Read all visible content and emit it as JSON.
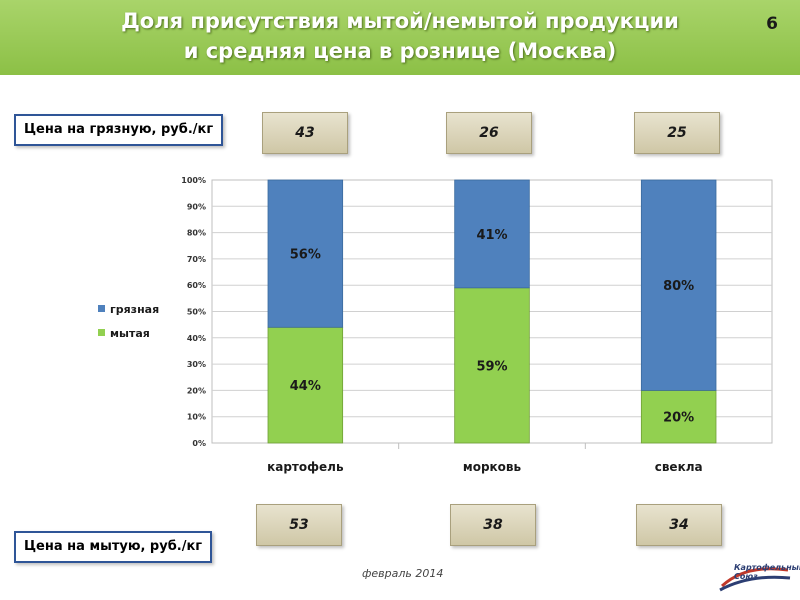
{
  "header": {
    "title_line1": "Доля присутствия мытой/немытой продукции",
    "title_line2": "и средняя цена в рознице (Москва)",
    "page_number": "6"
  },
  "price_labels": {
    "dirty": "Цена на грязную, руб./кг",
    "washed": "Цена на мытую, руб./кг"
  },
  "prices_dirty": [
    "43",
    "26",
    "25"
  ],
  "prices_washed": [
    "53",
    "38",
    "34"
  ],
  "footer": {
    "date": "февраль 2014",
    "logo_text": "Картофельный Союз"
  },
  "colors": {
    "washed": "#92d050",
    "dirty": "#4f81bd",
    "header": "#8cc046"
  },
  "chart_data": {
    "type": "bar",
    "stacked": true,
    "percent": true,
    "categories": [
      "картофель",
      "морковь",
      "свекла"
    ],
    "series": [
      {
        "name": "мытая",
        "values": [
          44,
          59,
          20
        ],
        "labels": [
          "44%",
          "59%",
          "20%"
        ]
      },
      {
        "name": "грязная",
        "values": [
          56,
          41,
          80
        ],
        "labels": [
          "56%",
          "41%",
          "80%"
        ]
      }
    ],
    "ylim": [
      0,
      100
    ],
    "yticks": [
      0,
      10,
      20,
      30,
      40,
      50,
      60,
      70,
      80,
      90,
      100
    ],
    "ytick_labels": [
      "0%",
      "10%",
      "20%",
      "30%",
      "40%",
      "50%",
      "60%",
      "70%",
      "80%",
      "90%",
      "100%"
    ],
    "legend": [
      "грязная",
      "мытая"
    ],
    "legend_position": "left",
    "grid": true
  }
}
